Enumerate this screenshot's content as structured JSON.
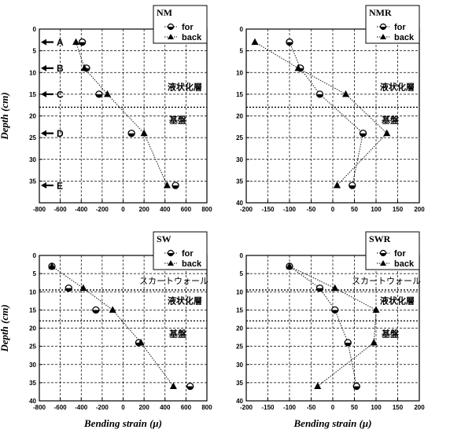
{
  "chart_data": [
    {
      "type": "scatter",
      "title": "NM",
      "ylabel": "Depth (cm)",
      "xlabel": "",
      "xlim": [
        -800,
        800
      ],
      "ylim": [
        40,
        0
      ],
      "xticks": [
        "-800",
        "-600",
        "-400",
        "-200",
        "0",
        "200",
        "400",
        "600",
        "800"
      ],
      "yticks": [
        "0",
        "5",
        "10",
        "15",
        "20",
        "25",
        "30",
        "35"
      ],
      "series": [
        {
          "name": "for",
          "marker": "circle",
          "line": false,
          "points": [
            [
              -390,
              3
            ],
            [
              -350,
              9
            ],
            [
              -230,
              15
            ],
            [
              80,
              24
            ],
            [
              500,
              36
            ]
          ]
        },
        {
          "name": "back",
          "marker": "triangle",
          "line": true,
          "points": [
            [
              -450,
              3
            ],
            [
              -370,
              9
            ],
            [
              -150,
              15
            ],
            [
              200,
              24
            ],
            [
              420,
              36
            ]
          ]
        }
      ],
      "annotations": {
        "layer_upper": "液状化層",
        "layer_lower": "基盤",
        "boundary_depth": 18,
        "skirt_label": ""
      },
      "depth_markers": [
        {
          "label": "A",
          "depth": 3
        },
        {
          "label": "B",
          "depth": 9
        },
        {
          "label": "C",
          "depth": 15
        },
        {
          "label": "D",
          "depth": 24
        },
        {
          "label": "E",
          "depth": 36
        }
      ]
    },
    {
      "type": "scatter",
      "title": "NMR",
      "ylabel": "",
      "xlabel": "",
      "xlim": [
        -200,
        200
      ],
      "ylim": [
        40,
        0
      ],
      "xticks": [
        "-200",
        "-150",
        "-100",
        "-50",
        "0",
        "50",
        "100",
        "150",
        "200"
      ],
      "yticks": [
        "0",
        "5",
        "10",
        "15",
        "20",
        "25",
        "30",
        "35",
        "40"
      ],
      "series": [
        {
          "name": "for",
          "marker": "circle",
          "line": true,
          "points": [
            [
              -100,
              3
            ],
            [
              -75,
              9
            ],
            [
              -30,
              15
            ],
            [
              70,
              24
            ],
            [
              45,
              36
            ]
          ]
        },
        {
          "name": "back",
          "marker": "triangle",
          "line": true,
          "points": [
            [
              -180,
              3
            ],
            [
              -80,
              9
            ],
            [
              30,
              15
            ],
            [
              125,
              24
            ],
            [
              10,
              36
            ]
          ]
        }
      ],
      "annotations": {
        "layer_upper": "液状化層",
        "layer_lower": "基盤",
        "boundary_depth": 18,
        "skirt_label": ""
      }
    },
    {
      "type": "scatter",
      "title": "SW",
      "ylabel": "Depth (cm)",
      "xlabel": "Bending strain (μ)",
      "xlim": [
        -800,
        800
      ],
      "ylim": [
        40,
        0
      ],
      "xticks": [
        "-800",
        "-600",
        "-400",
        "-200",
        "0",
        "200",
        "400",
        "600",
        "800"
      ],
      "yticks": [
        "0",
        "5",
        "10",
        "15",
        "20",
        "25",
        "30",
        "35",
        "40"
      ],
      "series": [
        {
          "name": "for",
          "marker": "circle",
          "line": false,
          "points": [
            [
              -680,
              3
            ],
            [
              -520,
              9
            ],
            [
              -260,
              15
            ],
            [
              150,
              24
            ],
            [
              640,
              36
            ]
          ]
        },
        {
          "name": "back",
          "marker": "triangle",
          "line": true,
          "points": [
            [
              -680,
              3
            ],
            [
              -380,
              9
            ],
            [
              -100,
              15
            ],
            [
              170,
              24
            ],
            [
              480,
              36
            ]
          ]
        }
      ],
      "annotations": {
        "layer_upper": "液状化層",
        "layer_lower": "基盤",
        "boundary_depth": 18,
        "skirt_label": "スカートウォール"
      }
    },
    {
      "type": "scatter",
      "title": "SWR",
      "ylabel": "",
      "xlabel": "Bending strain (μ)",
      "xlim": [
        -200,
        200
      ],
      "ylim": [
        40,
        0
      ],
      "xticks": [
        "-200",
        "-150",
        "-100",
        "-50",
        "0",
        "50",
        "100",
        "150",
        "200"
      ],
      "yticks": [
        "0",
        "5",
        "10",
        "15",
        "20",
        "25",
        "30",
        "35",
        "40"
      ],
      "series": [
        {
          "name": "for",
          "marker": "circle",
          "line": true,
          "points": [
            [
              -100,
              3
            ],
            [
              -30,
              9
            ],
            [
              5,
              15
            ],
            [
              35,
              24
            ],
            [
              55,
              36
            ]
          ]
        },
        {
          "name": "back",
          "marker": "triangle",
          "line": true,
          "points": [
            [
              -100,
              3
            ],
            [
              5,
              9
            ],
            [
              100,
              15
            ],
            [
              95,
              24
            ],
            [
              -35,
              36
            ]
          ]
        }
      ],
      "annotations": {
        "layer_upper": "液状化層",
        "layer_lower": "基盤",
        "boundary_depth": 18,
        "skirt_label": "スカートウォール"
      }
    }
  ]
}
